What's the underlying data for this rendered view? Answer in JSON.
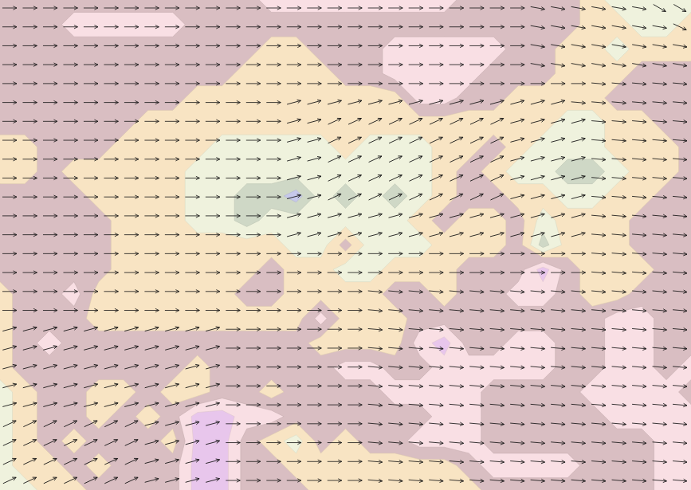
{
  "chart_data": {
    "type": "contour",
    "tick_labels": false,
    "levels": [
      0.5,
      1.5,
      2.5,
      3.5,
      4.5,
      5.5,
      6.5
    ],
    "colors": [
      "#e8c6ec",
      "#f9dfe4",
      "#d9bec2",
      "#f8e4c3",
      "#eff2dd",
      "#cfd8c6",
      "#c6c8ea"
    ],
    "cells": [
      [
        3,
        3,
        3,
        3,
        3,
        3,
        3,
        3,
        3,
        3,
        3,
        2,
        2,
        2,
        2,
        2,
        2,
        2,
        2,
        3,
        3,
        3,
        3,
        3,
        4,
        5,
        5,
        5,
        5
      ],
      [
        3,
        3,
        3,
        2,
        2,
        2,
        2,
        2,
        3,
        3,
        3,
        3,
        3,
        3,
        3,
        3,
        3,
        3,
        3,
        3,
        3,
        3,
        3,
        3,
        4,
        4,
        5,
        5,
        4
      ],
      [
        3,
        3,
        3,
        3,
        3,
        3,
        3,
        3,
        3,
        3,
        3,
        4,
        4,
        3,
        3,
        3,
        2,
        2,
        2,
        2,
        2,
        3,
        3,
        4,
        4,
        5,
        4,
        4,
        4
      ],
      [
        3,
        3,
        3,
        3,
        3,
        3,
        3,
        3,
        3,
        3,
        4,
        4,
        4,
        4,
        3,
        3,
        2,
        2,
        2,
        2,
        3,
        3,
        3,
        4,
        4,
        4,
        3,
        3,
        3
      ],
      [
        3,
        3,
        3,
        3,
        3,
        3,
        3,
        3,
        4,
        4,
        4,
        4,
        4,
        4,
        4,
        4,
        4,
        2,
        2,
        3,
        3,
        4,
        4,
        4,
        4,
        3,
        3,
        3,
        3
      ],
      [
        3,
        3,
        3,
        3,
        3,
        3,
        4,
        4,
        4,
        4,
        4,
        4,
        4,
        4,
        4,
        4,
        4,
        4,
        4,
        4,
        4,
        4,
        4,
        5,
        5,
        4,
        4,
        3,
        3
      ],
      [
        4,
        4,
        3,
        3,
        3,
        4,
        4,
        4,
        4,
        5,
        5,
        5,
        5,
        5,
        4,
        5,
        5,
        5,
        4,
        4,
        3,
        4,
        5,
        5,
        5,
        4,
        4,
        4,
        3
      ],
      [
        4,
        4,
        3,
        4,
        4,
        4,
        4,
        4,
        5,
        5,
        5,
        5,
        5,
        5,
        5,
        5,
        5,
        5,
        4,
        3,
        4,
        5,
        5,
        6,
        6,
        5,
        4,
        4,
        3
      ],
      [
        3,
        3,
        3,
        3,
        4,
        4,
        4,
        4,
        5,
        5,
        6,
        6,
        7,
        5,
        6,
        5,
        6,
        5,
        4,
        3,
        3,
        4,
        4,
        5,
        5,
        4,
        4,
        3,
        3
      ],
      [
        3,
        3,
        3,
        3,
        3,
        4,
        4,
        4,
        5,
        5,
        6,
        5,
        5,
        5,
        5,
        5,
        5,
        4,
        3,
        4,
        4,
        3,
        5,
        4,
        4,
        4,
        3,
        3,
        3
      ],
      [
        3,
        3,
        3,
        3,
        3,
        4,
        4,
        4,
        4,
        4,
        4,
        4,
        5,
        5,
        3,
        5,
        5,
        5,
        4,
        4,
        4,
        3,
        6,
        4,
        4,
        4,
        3,
        3,
        3
      ],
      [
        3,
        3,
        3,
        3,
        3,
        4,
        4,
        4,
        4,
        4,
        4,
        3,
        4,
        4,
        5,
        5,
        4,
        4,
        4,
        3,
        3,
        3,
        1,
        3,
        4,
        4,
        4,
        3,
        3
      ],
      [
        4,
        3,
        3,
        2,
        4,
        4,
        4,
        4,
        4,
        4,
        3,
        3,
        4,
        4,
        4,
        4,
        3,
        3,
        4,
        3,
        3,
        2,
        2,
        3,
        4,
        4,
        3,
        3,
        3
      ],
      [
        4,
        3,
        3,
        3,
        4,
        4,
        4,
        4,
        4,
        4,
        4,
        4,
        4,
        2,
        4,
        4,
        4,
        3,
        3,
        3,
        3,
        3,
        3,
        3,
        3,
        2,
        2,
        3,
        3
      ],
      [
        4,
        3,
        2,
        3,
        3,
        3,
        3,
        3,
        3,
        3,
        3,
        3,
        3,
        4,
        4,
        4,
        4,
        2,
        1,
        3,
        3,
        2,
        2,
        3,
        3,
        2,
        2,
        3,
        3
      ],
      [
        4,
        3,
        3,
        3,
        3,
        3,
        3,
        3,
        4,
        3,
        3,
        3,
        3,
        3,
        2,
        2,
        3,
        3,
        2,
        2,
        2,
        2,
        2,
        3,
        3,
        2,
        2,
        3,
        2
      ],
      [
        5,
        4,
        3,
        3,
        4,
        4,
        3,
        4,
        4,
        3,
        3,
        4,
        3,
        3,
        3,
        3,
        2,
        2,
        2,
        2,
        3,
        3,
        3,
        3,
        2,
        2,
        2,
        2,
        3
      ],
      [
        5,
        4,
        3,
        3,
        4,
        3,
        4,
        3,
        1,
        1,
        2,
        2,
        3,
        3,
        3,
        3,
        3,
        3,
        2,
        2,
        3,
        3,
        3,
        3,
        3,
        2,
        2,
        2,
        2
      ],
      [
        5,
        4,
        3,
        4,
        3,
        3,
        3,
        4,
        1,
        1,
        3,
        4,
        5,
        3,
        4,
        3,
        3,
        2,
        2,
        2,
        3,
        3,
        3,
        3,
        3,
        3,
        3,
        2,
        2
      ],
      [
        5,
        4,
        4,
        3,
        4,
        3,
        3,
        3,
        1,
        1,
        3,
        3,
        4,
        4,
        4,
        4,
        4,
        4,
        4,
        3,
        2,
        2,
        2,
        2,
        3,
        3,
        3,
        2,
        2
      ],
      [
        5,
        5,
        4,
        4,
        3,
        3,
        3,
        3,
        1,
        1,
        3,
        3,
        3,
        4,
        4,
        4,
        4,
        4,
        4,
        4,
        3,
        3,
        3,
        3,
        3,
        3,
        3,
        2,
        2
      ]
    ],
    "wind": {
      "directions": [
        [
          0,
          0,
          0,
          0,
          0,
          0,
          0,
          0,
          0,
          0,
          0,
          0,
          0,
          0,
          0,
          0,
          0,
          0,
          0,
          0,
          0,
          0,
          0,
          0,
          0,
          0,
          10,
          10,
          10,
          10,
          10,
          10,
          30,
          30
        ],
        [
          0,
          0,
          0,
          0,
          0,
          0,
          0,
          0,
          0,
          0,
          0,
          0,
          0,
          0,
          0,
          0,
          0,
          0,
          0,
          0,
          0,
          0,
          0,
          0,
          0,
          0,
          10,
          10,
          10,
          10,
          10,
          10,
          10,
          25
        ],
        [
          0,
          0,
          0,
          0,
          0,
          0,
          0,
          0,
          0,
          0,
          0,
          0,
          0,
          0,
          0,
          0,
          0,
          0,
          0,
          0,
          0,
          0,
          0,
          0,
          0,
          0,
          10,
          10,
          10,
          10,
          10,
          10,
          10,
          10
        ],
        [
          0,
          0,
          0,
          0,
          0,
          0,
          0,
          0,
          0,
          0,
          0,
          0,
          0,
          0,
          0,
          0,
          0,
          0,
          0,
          0,
          0,
          0,
          0,
          0,
          0,
          0,
          10,
          10,
          10,
          10,
          10,
          10,
          10,
          10
        ],
        [
          0,
          0,
          0,
          0,
          0,
          0,
          0,
          0,
          0,
          0,
          0,
          0,
          0,
          0,
          0,
          0,
          0,
          0,
          0,
          0,
          0,
          0,
          0,
          0,
          0,
          0,
          0,
          0,
          0,
          5,
          5,
          5,
          5,
          5
        ],
        [
          0,
          0,
          0,
          0,
          0,
          0,
          0,
          0,
          0,
          0,
          0,
          0,
          0,
          0,
          -15,
          -15,
          -15,
          -15,
          -15,
          -15,
          -15,
          -15,
          -15,
          -15,
          -15,
          -15,
          -15,
          -15,
          5,
          5,
          5,
          5,
          5,
          5
        ],
        [
          0,
          0,
          0,
          0,
          0,
          0,
          0,
          0,
          0,
          0,
          0,
          0,
          0,
          0,
          -15,
          -15,
          -25,
          -25,
          -25,
          -25,
          -25,
          -25,
          -25,
          -25,
          -25,
          -15,
          -15,
          -15,
          -15,
          5,
          5,
          5,
          5,
          5
        ],
        [
          0,
          0,
          0,
          0,
          0,
          0,
          0,
          0,
          0,
          0,
          0,
          0,
          0,
          0,
          -15,
          -15,
          -25,
          -25,
          -25,
          -25,
          -25,
          -25,
          -25,
          -25,
          -25,
          -15,
          -15,
          -15,
          -15,
          5,
          5,
          5,
          5,
          5
        ],
        [
          0,
          0,
          0,
          0,
          0,
          0,
          0,
          0,
          0,
          0,
          0,
          0,
          0,
          0,
          -15,
          -15,
          -25,
          -25,
          -25,
          -25,
          -25,
          -25,
          -25,
          -25,
          -25,
          -15,
          -15,
          -15,
          -15,
          5,
          5,
          5,
          5,
          5
        ],
        [
          0,
          0,
          0,
          0,
          0,
          0,
          0,
          0,
          0,
          0,
          0,
          0,
          0,
          0,
          -15,
          -15,
          -25,
          -25,
          -25,
          -25,
          -25,
          -25,
          -25,
          -25,
          -25,
          -15,
          -15,
          -15,
          -15,
          5,
          5,
          5,
          5,
          5
        ],
        [
          0,
          0,
          0,
          0,
          0,
          0,
          0,
          0,
          0,
          0,
          0,
          0,
          0,
          0,
          -15,
          -15,
          -25,
          -25,
          -25,
          -25,
          -25,
          -25,
          -25,
          -25,
          -25,
          -15,
          -15,
          -15,
          -15,
          5,
          5,
          5,
          5,
          5
        ],
        [
          0,
          0,
          0,
          0,
          0,
          0,
          0,
          0,
          0,
          0,
          0,
          0,
          0,
          0,
          -15,
          -15,
          -15,
          -15,
          -15,
          -15,
          -15,
          -15,
          -15,
          -15,
          -15,
          -15,
          -15,
          -15,
          -15,
          5,
          5,
          5,
          5,
          5
        ],
        [
          0,
          0,
          0,
          0,
          0,
          0,
          0,
          0,
          0,
          0,
          0,
          0,
          0,
          0,
          -15,
          -15,
          -15,
          -15,
          -15,
          -15,
          -15,
          -15,
          -15,
          -15,
          -15,
          -15,
          -15,
          -15,
          -15,
          5,
          5,
          5,
          5,
          5
        ],
        [
          0,
          0,
          0,
          0,
          0,
          0,
          0,
          0,
          0,
          0,
          0,
          0,
          0,
          0,
          0,
          0,
          0,
          0,
          0,
          0,
          0,
          0,
          0,
          0,
          0,
          0,
          0,
          0,
          0,
          5,
          5,
          5,
          5,
          5
        ],
        [
          0,
          0,
          0,
          0,
          0,
          0,
          0,
          0,
          0,
          0,
          0,
          0,
          0,
          0,
          0,
          0,
          0,
          0,
          0,
          0,
          0,
          0,
          0,
          0,
          0,
          0,
          0,
          0,
          0,
          5,
          5,
          5,
          5,
          5
        ],
        [
          0,
          0,
          0,
          0,
          0,
          0,
          0,
          0,
          0,
          0,
          0,
          0,
          0,
          0,
          0,
          0,
          0,
          0,
          5,
          5,
          5,
          5,
          5,
          5,
          5,
          5,
          5,
          5,
          5,
          5,
          5,
          5,
          5,
          5
        ],
        [
          0,
          0,
          0,
          0,
          0,
          0,
          0,
          0,
          0,
          0,
          0,
          0,
          0,
          0,
          0,
          0,
          0,
          0,
          5,
          5,
          5,
          5,
          5,
          5,
          5,
          5,
          5,
          5,
          5,
          5,
          5,
          5,
          5,
          5
        ],
        [
          -15,
          -15,
          -15,
          -15,
          -15,
          -15,
          -15,
          -15,
          -15,
          -15,
          -15,
          0,
          0,
          0,
          0,
          0,
          0,
          0,
          5,
          5,
          5,
          5,
          5,
          5,
          5,
          5,
          5,
          5,
          5,
          5,
          5,
          5,
          5,
          5
        ],
        [
          -15,
          -15,
          -15,
          -15,
          -15,
          -15,
          -15,
          -15,
          -15,
          -15,
          -15,
          0,
          0,
          0,
          0,
          0,
          0,
          0,
          5,
          5,
          5,
          5,
          5,
          5,
          5,
          5,
          5,
          5,
          5,
          5,
          5,
          5,
          5,
          5
        ],
        [
          -15,
          -15,
          -15,
          -15,
          -15,
          -15,
          -15,
          -15,
          -15,
          -15,
          -15,
          0,
          0,
          0,
          0,
          0,
          0,
          0,
          5,
          5,
          5,
          5,
          5,
          5,
          5,
          5,
          5,
          5,
          5,
          5,
          5,
          5,
          5,
          5
        ],
        [
          -15,
          -15,
          -15,
          -15,
          -15,
          -15,
          -15,
          -15,
          -15,
          -15,
          -15,
          0,
          0,
          0,
          0,
          0,
          0,
          0,
          5,
          5,
          5,
          5,
          5,
          5,
          5,
          5,
          5,
          5,
          5,
          5,
          5,
          5,
          5,
          5
        ],
        [
          -15,
          -15,
          -15,
          -15,
          -15,
          -15,
          -15,
          -15,
          -15,
          -15,
          -15,
          0,
          0,
          0,
          0,
          0,
          0,
          0,
          5,
          5,
          5,
          5,
          5,
          5,
          5,
          5,
          5,
          5,
          5,
          5,
          5,
          5,
          5,
          5
        ],
        [
          -25,
          -25,
          -25,
          -25,
          -25,
          -25,
          -25,
          -15,
          -15,
          -15,
          -15,
          0,
          0,
          0,
          0,
          0,
          0,
          0,
          5,
          5,
          5,
          5,
          5,
          5,
          5,
          5,
          5,
          5,
          5,
          5,
          5,
          5,
          5,
          5
        ],
        [
          -25,
          -25,
          -25,
          -25,
          -25,
          -25,
          -25,
          -15,
          -15,
          -15,
          -15,
          0,
          0,
          0,
          0,
          0,
          0,
          0,
          5,
          5,
          5,
          5,
          5,
          5,
          5,
          5,
          5,
          5,
          5,
          5,
          5,
          5,
          5,
          5
        ],
        [
          -25,
          -25,
          -25,
          -25,
          -25,
          -25,
          -25,
          -15,
          -15,
          -15,
          -15,
          0,
          0,
          0,
          0,
          0,
          0,
          0,
          5,
          5,
          5,
          5,
          5,
          5,
          5,
          5,
          5,
          5,
          5,
          5,
          5,
          5,
          5,
          5
        ],
        [
          -25,
          -25,
          -25,
          -25,
          -25,
          -25,
          -25,
          -15,
          -15,
          -15,
          -15,
          0,
          0,
          0,
          0,
          0,
          0,
          0,
          5,
          5,
          5,
          5,
          5,
          5,
          5,
          5,
          5,
          5,
          5,
          5,
          5,
          5,
          5,
          5
        ]
      ]
    }
  }
}
